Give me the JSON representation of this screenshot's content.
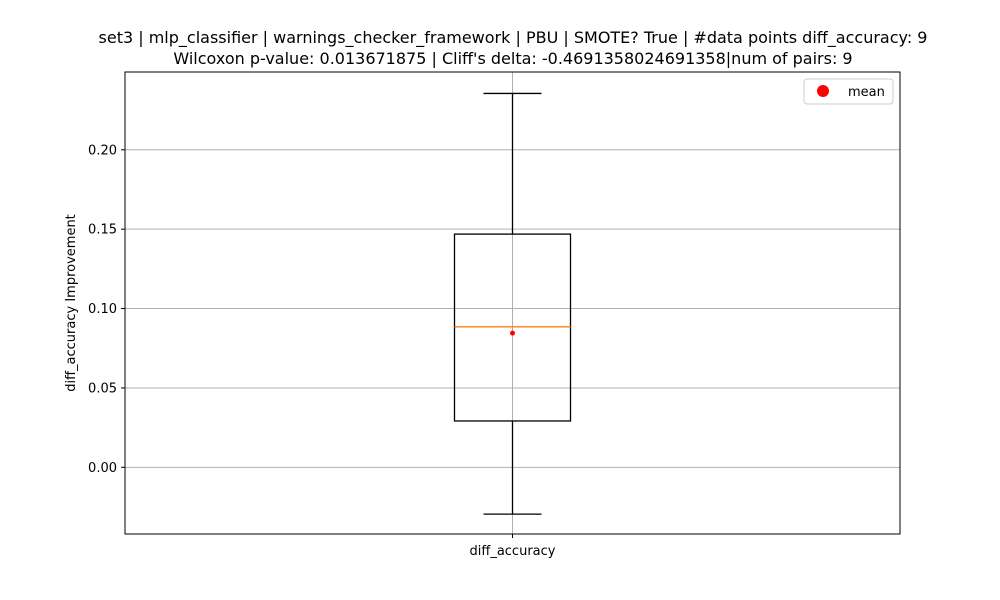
{
  "chart_data": {
    "type": "box",
    "title": "set3 | mlp_classifier | warnings_checker_framework | PBU | SMOTE? True | #data points diff_accuracy: 9",
    "subtitle": "Wilcoxon p-value: 0.013671875 | Cliff's delta: -0.4691358024691358|num of pairs: 9",
    "xlabel": "",
    "ylabel": "diff_accuracy Improvement",
    "categories": [
      "diff_accuracy"
    ],
    "ylim": [
      -0.042,
      0.249
    ],
    "yticks": [
      0.0,
      0.05,
      0.1,
      0.15,
      0.2
    ],
    "ytick_labels": [
      "0.00",
      "0.05",
      "0.10",
      "0.15",
      "0.20"
    ],
    "grid": true,
    "legend": {
      "position": "top-right",
      "entries": [
        {
          "label": "mean",
          "color": "#ff0000"
        }
      ]
    },
    "boxes": [
      {
        "category": "diff_accuracy",
        "whisker_low": -0.0295,
        "q1": 0.0292,
        "median": 0.0885,
        "q3": 0.1469,
        "whisker_high": 0.2355,
        "mean": 0.0845
      }
    ],
    "colors": {
      "box": "#000000",
      "median": "#ff7f0e",
      "mean": "#ff0000",
      "grid": "#b0b0b0"
    }
  }
}
